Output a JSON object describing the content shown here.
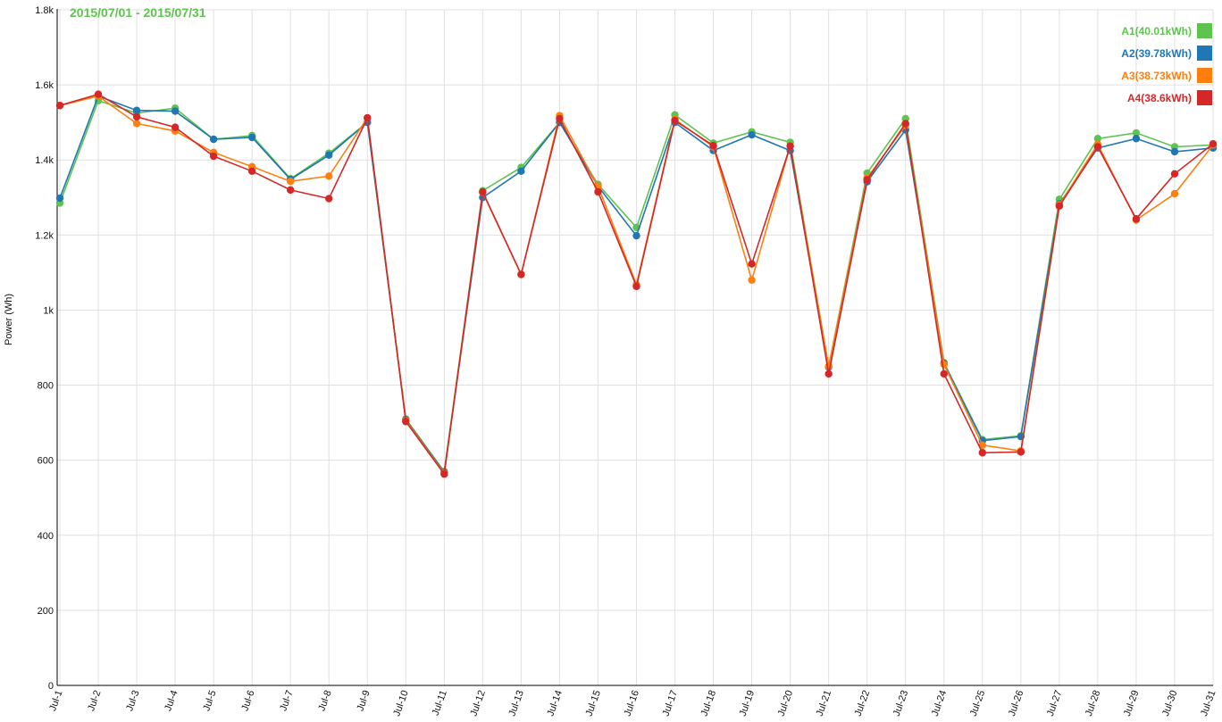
{
  "chart_data": {
    "type": "line",
    "period_label": "2015/07/01 - 2015/07/31",
    "ylabel": "Power (Wh)",
    "xlabel": "",
    "ylim": [
      0,
      1800
    ],
    "y_ticks": [
      {
        "value": 0,
        "label": "0"
      },
      {
        "value": 200,
        "label": "200"
      },
      {
        "value": 400,
        "label": "400"
      },
      {
        "value": 600,
        "label": "600"
      },
      {
        "value": 800,
        "label": "800"
      },
      {
        "value": 1000,
        "label": "1k"
      },
      {
        "value": 1200,
        "label": "1.2k"
      },
      {
        "value": 1400,
        "label": "1.4k"
      },
      {
        "value": 1600,
        "label": "1.6k"
      },
      {
        "value": 1800,
        "label": "1.8k"
      }
    ],
    "grid": true,
    "legend_position": "top-right",
    "categories": [
      "Jul-1",
      "Jul-2",
      "Jul-3",
      "Jul-4",
      "Jul-5",
      "Jul-6",
      "Jul-7",
      "Jul-8",
      "Jul-9",
      "Jul-10",
      "Jul-11",
      "Jul-12",
      "Jul-13",
      "Jul-14",
      "Jul-15",
      "Jul-16",
      "Jul-17",
      "Jul-18",
      "Jul-19",
      "Jul-20",
      "Jul-21",
      "Jul-22",
      "Jul-23",
      "Jul-24",
      "Jul-25",
      "Jul-26",
      "Jul-27",
      "Jul-28",
      "Jul-29",
      "Jul-30",
      "Jul-31"
    ],
    "series": [
      {
        "name": "A1(40.01kWh)",
        "color": "#5ec44f",
        "values": [
          1285,
          1558,
          1525,
          1538,
          1455,
          1465,
          1350,
          1418,
          1500,
          710,
          570,
          1318,
          1380,
          1500,
          1335,
          1220,
          1520,
          1445,
          1475,
          1447,
          850,
          1365,
          1510,
          860,
          655,
          665,
          1295,
          1457,
          1472,
          1435,
          1440
        ]
      },
      {
        "name": "A2(39.78kWh)",
        "color": "#1f77b4",
        "values": [
          1298,
          1570,
          1532,
          1530,
          1455,
          1460,
          1348,
          1413,
          1500,
          708,
          568,
          1300,
          1370,
          1500,
          1330,
          1198,
          1500,
          1425,
          1467,
          1425,
          848,
          1342,
          1480,
          858,
          652,
          663,
          1283,
          1432,
          1457,
          1422,
          1432
        ]
      },
      {
        "name": "A3(38.73kWh)",
        "color": "#ff7f0e",
        "values": [
          1545,
          1570,
          1497,
          1477,
          1420,
          1382,
          1343,
          1357,
          1512,
          706,
          565,
          1313,
          1095,
          1518,
          1330,
          1068,
          1508,
          1435,
          1080,
          1437,
          850,
          1352,
          1492,
          855,
          640,
          625,
          1280,
          1442,
          1240,
          1310,
          1440
        ]
      },
      {
        "name": "A4(38.6kWh)",
        "color": "#d62728",
        "values": [
          1545,
          1575,
          1515,
          1487,
          1410,
          1370,
          1320,
          1297,
          1512,
          703,
          563,
          1315,
          1095,
          1510,
          1315,
          1063,
          1505,
          1438,
          1123,
          1437,
          830,
          1347,
          1497,
          830,
          620,
          622,
          1277,
          1435,
          1243,
          1363,
          1443
        ]
      }
    ]
  }
}
